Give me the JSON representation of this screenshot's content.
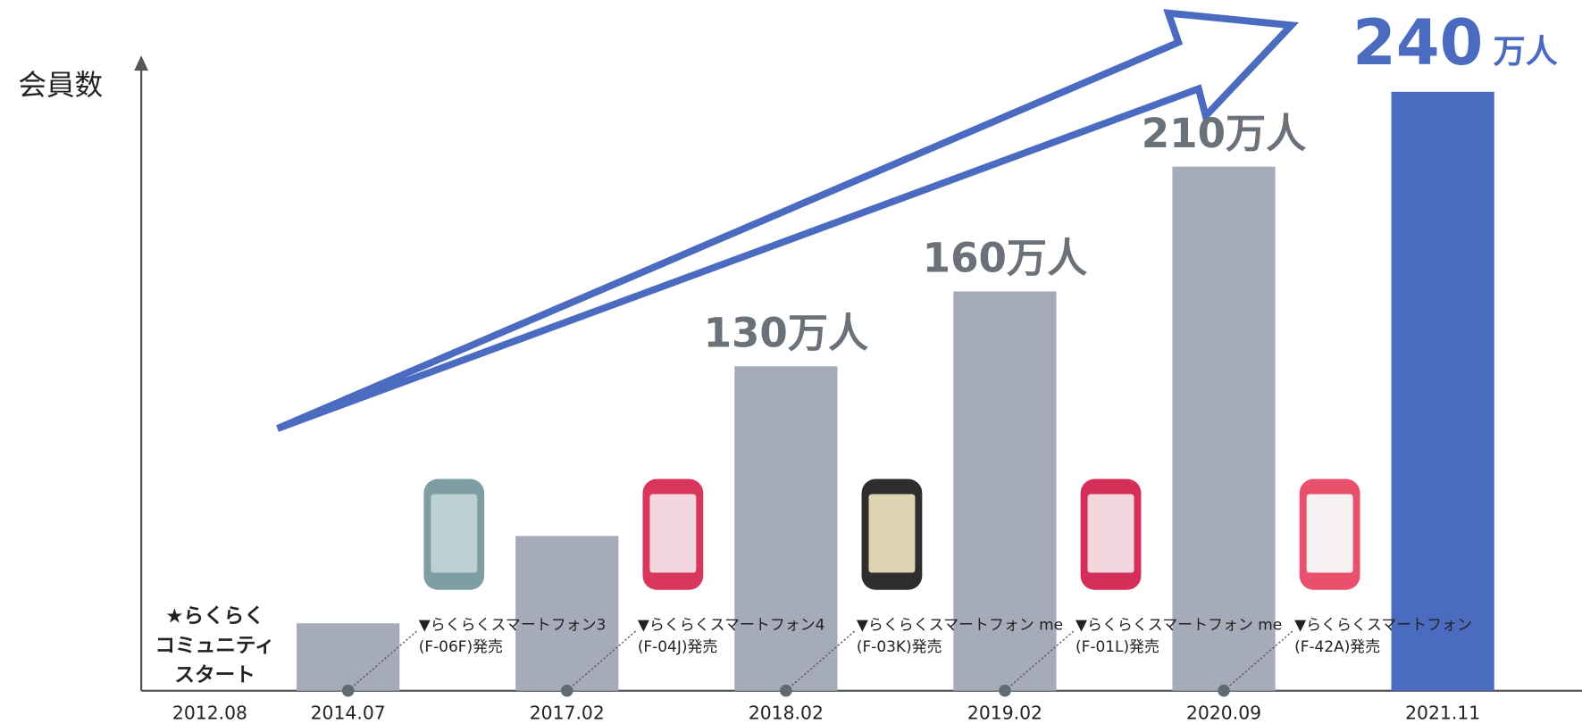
{
  "chart_data": {
    "type": "bar",
    "y_label": "会員数",
    "categories": [
      "2012.08",
      "2014.07",
      "2017.02",
      "2018.02",
      "2019.02",
      "2020.09",
      "2021.11"
    ],
    "values": [
      null,
      27,
      62,
      130,
      160,
      210,
      240
    ],
    "value_labels": [
      null,
      null,
      null,
      "130万人",
      "160万人",
      "210万人",
      "240"
    ],
    "unit_label": "万人",
    "colors": [
      "#a5abb8",
      "#a5abb8",
      "#a5abb8",
      "#a5abb8",
      "#a5abb8",
      "#a5abb8",
      "#4a6bbf"
    ],
    "ylim": [
      0,
      240
    ],
    "start_note": [
      "★らくらく",
      "コミュニティ",
      "スタート"
    ],
    "releases": [
      [
        "▼らくらくスマートフォン3",
        "(F-06F)発売"
      ],
      [
        "▼らくらくスマートフォン4",
        "(F-04J)発売"
      ],
      [
        "▼らくらくスマートフォン me",
        "(F-03K)発売"
      ],
      [
        "▼らくらくスマートフォン me",
        "(F-01L)発売"
      ],
      [
        "▼らくらくスマートフォン",
        "(F-42A)発売"
      ]
    ]
  }
}
